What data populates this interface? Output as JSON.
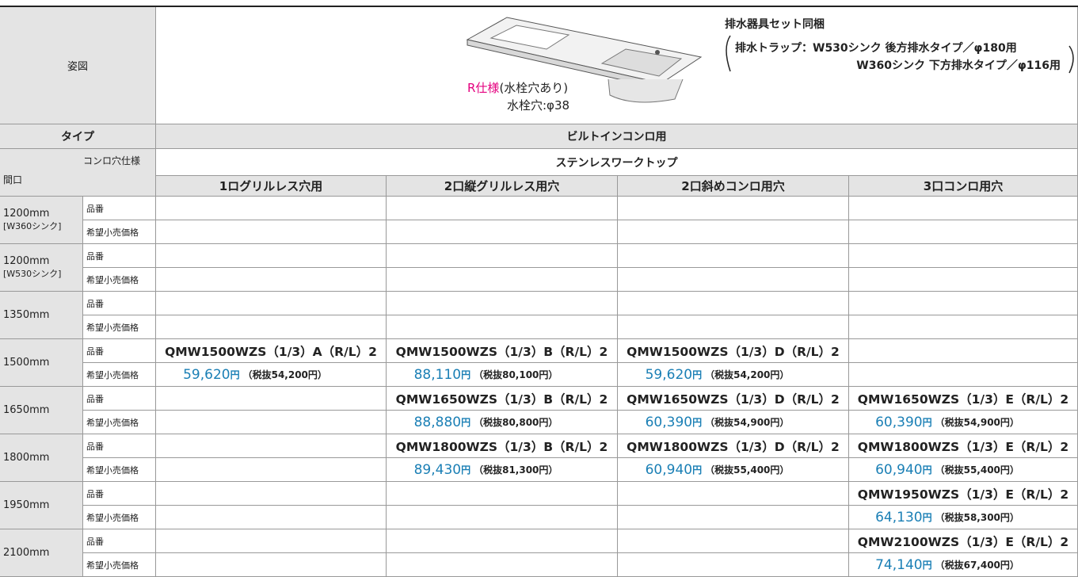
{
  "figure": {
    "label": "姿図",
    "spec_r": "R仕様",
    "spec_rest": "(水栓穴あり)",
    "faucet": "水栓穴:φ38",
    "drain_title": "排水器具セット同梱",
    "drain_1": "排水トラップ：W530シンク 後方排水タイプ／φ180用",
    "drain_2": "W360シンク 下方排水タイプ／φ116用"
  },
  "table": {
    "type_label": "タイプ",
    "type_value": "ビルトインコンロ用",
    "material": "ステンレスワークトップ",
    "width_label": "間口",
    "hole_label": "コンロ穴仕様",
    "columns": [
      "1ログリルレス穴用",
      "2口縦グリルレス用穴",
      "2口斜めコンロ用穴",
      "3口コンロ用穴"
    ],
    "row_labels": {
      "code": "品番",
      "price": "希望小売価格"
    },
    "rows": [
      {
        "width": "1200mm",
        "sub": "[W360シンク]",
        "cells": [
          null,
          null,
          null,
          null
        ]
      },
      {
        "width": "1200mm",
        "sub": "[W530シンク]",
        "cells": [
          null,
          null,
          null,
          null
        ]
      },
      {
        "width": "1350mm",
        "sub": null,
        "cells": [
          null,
          null,
          null,
          null
        ]
      },
      {
        "width": "1500mm",
        "sub": null,
        "cells": [
          {
            "code": "QMW1500WZS（1/3）A（R/L）2",
            "price": "59,620",
            "yen": "円",
            "tax": "（税抜54,200円）"
          },
          {
            "code": "QMW1500WZS（1/3）B（R/L）2",
            "price": "88,110",
            "yen": "円",
            "tax": "（税抜80,100円）"
          },
          {
            "code": "QMW1500WZS（1/3）D（R/L）2",
            "price": "59,620",
            "yen": "円",
            "tax": "（税抜54,200円）"
          },
          null
        ]
      },
      {
        "width": "1650mm",
        "sub": null,
        "cells": [
          null,
          {
            "code": "QMW1650WZS（1/3）B（R/L）2",
            "price": "88,880",
            "yen": "円",
            "tax": "（税抜80,800円）"
          },
          {
            "code": "QMW1650WZS（1/3）D（R/L）2",
            "price": "60,390",
            "yen": "円",
            "tax": "（税抜54,900円）"
          },
          {
            "code": "QMW1650WZS（1/3）E（R/L）2",
            "price": "60,390",
            "yen": "円",
            "tax": "（税抜54,900円）"
          }
        ]
      },
      {
        "width": "1800mm",
        "sub": null,
        "cells": [
          null,
          {
            "code": "QMW1800WZS（1/3）B（R/L）2",
            "price": "89,430",
            "yen": "円",
            "tax": "（税抜81,300円）"
          },
          {
            "code": "QMW1800WZS（1/3）D（R/L）2",
            "price": "60,940",
            "yen": "円",
            "tax": "（税抜55,400円）"
          },
          {
            "code": "QMW1800WZS（1/3）E（R/L）2",
            "price": "60,940",
            "yen": "円",
            "tax": "（税抜55,400円）"
          }
        ]
      },
      {
        "width": "1950mm",
        "sub": null,
        "cells": [
          null,
          null,
          null,
          {
            "code": "QMW1950WZS（1/3）E（R/L）2",
            "price": "64,130",
            "yen": "円",
            "tax": "（税抜58,300円）"
          }
        ]
      },
      {
        "width": "2100mm",
        "sub": null,
        "cells": [
          null,
          null,
          null,
          {
            "code": "QMW2100WZS（1/3）E（R/L）2",
            "price": "74,140",
            "yen": "円",
            "tax": "（税抜67,400円）"
          }
        ]
      }
    ]
  }
}
